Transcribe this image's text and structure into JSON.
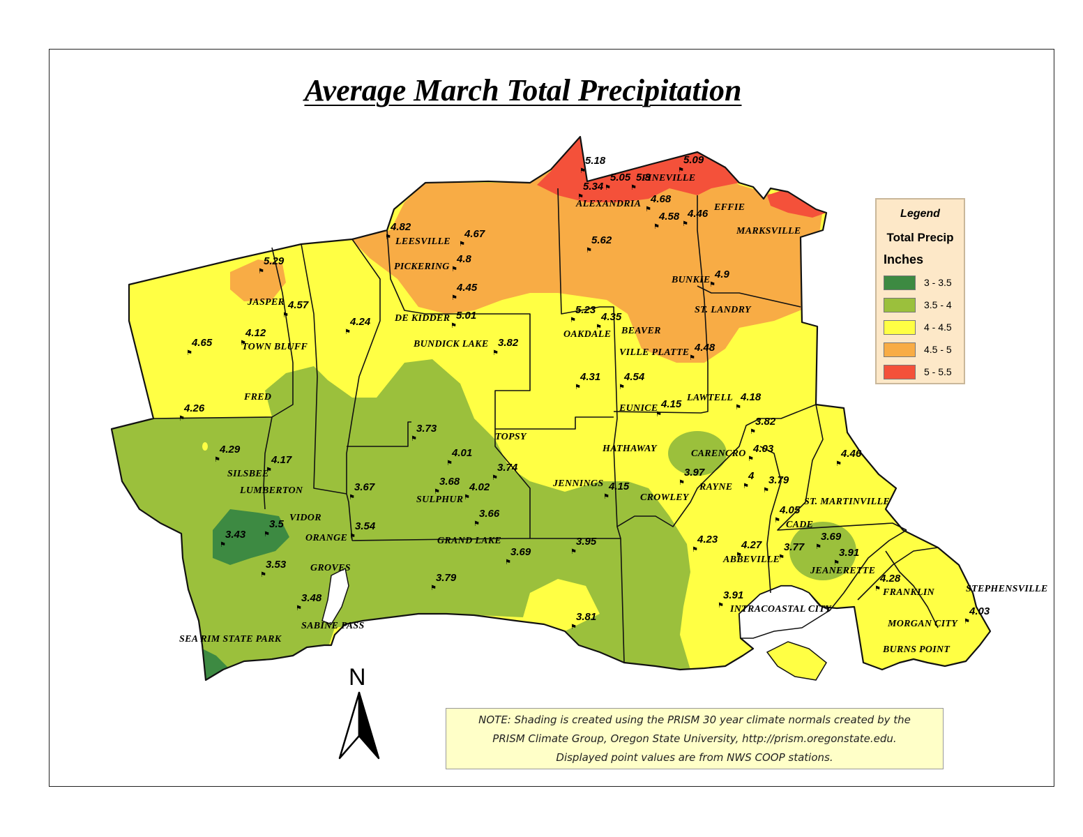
{
  "title": "Average March Total Precipitation",
  "legend": {
    "title": "Legend",
    "subtitle": "Total Precip",
    "units": "Inches",
    "classes": [
      {
        "label": "3 - 3.5",
        "color": "#3d8a42"
      },
      {
        "label": "3.5 - 4",
        "color": "#9bc03c"
      },
      {
        "label": "4 - 4.5",
        "color": "#ffff44"
      },
      {
        "label": "4.5 - 5",
        "color": "#f8ac45"
      },
      {
        "label": "5 - 5.5",
        "color": "#f4513a"
      }
    ]
  },
  "note": {
    "line1": "NOTE: Shading is created using the PRISM 30 year climate normals created by the",
    "line2": "PRISM Climate Group, Oregon State University, http://prism.oregonstate.edu.",
    "line3": "Displayed point values are from NWS COOP stations."
  },
  "north_label": "N",
  "places": [
    "PINEVILLE",
    "ALEXANDRIA",
    "EFFIE",
    "MARKSVILLE",
    "LEESVILLE",
    "PICKERING",
    "BUNKIE",
    "ST. LANDRY",
    "JASPER",
    "DE KIDDER",
    "BEAVER",
    "OAKDALE",
    "TOWN BLUFF",
    "BUNDICK LAKE",
    "VILLE PLATTE",
    "FRED",
    "EUNICE",
    "LAWTELL",
    "TOPSY",
    "HATHAWAY",
    "CARENCRO",
    "SILSBEE",
    "JENNINGS",
    "RAYNE",
    "LUMBERTON",
    "CROWLEY",
    "SULPHUR",
    "ST. MARTINVILLE",
    "VIDOR",
    "CADE",
    "ORANGE",
    "GRAND LAKE",
    "ABBEVILLE",
    "JEANERETTE",
    "GROVES",
    "FRANKLIN",
    "STEPHENSVILLE",
    "INTRACOASTAL CITY",
    "SABINE PASS",
    "MORGAN CITY",
    "SEA RIM STATE PARK",
    "BURNS POINT"
  ],
  "station_values": [
    "5.18",
    "5.09",
    "5.05",
    "5.3",
    "5.34",
    "4.68",
    "4.58",
    "4.46",
    "4.82",
    "4.67",
    "5.62",
    "4.8",
    "5.29",
    "4.45",
    "4.9",
    "4.57",
    "5.23",
    "4.35",
    "4.24",
    "5.01",
    "4.12",
    "3.82",
    "4.65",
    "4.48",
    "4.31",
    "4.54",
    "4.18",
    "4.26",
    "4.15",
    "3.82",
    "3.73",
    "4.29",
    "4.01",
    "4.03",
    "4.17",
    "3.74",
    "4.46",
    "3.68",
    "3.97",
    "4.02",
    "3.67",
    "4",
    "3.79",
    "3.66",
    "3.5",
    "4.15",
    "4.05",
    "3.54",
    "3.43",
    "4.23",
    "3.69",
    "3.95",
    "3.69",
    "4.27",
    "3.77",
    "3.91",
    "3.53",
    "3.79",
    "4.28",
    "3.48",
    "3.91",
    "3.81",
    "4.03"
  ]
}
